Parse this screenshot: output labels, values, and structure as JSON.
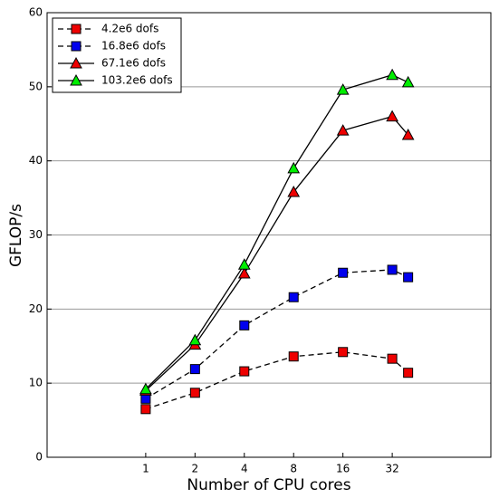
{
  "chart_data": {
    "type": "line",
    "x_label": "Number of CPU cores",
    "y_label": "GFLOP/s",
    "x": [
      1,
      2,
      4,
      8,
      16,
      32,
      40
    ],
    "series": [
      {
        "name": "4.2e6 dofs",
        "color": "#ee0000",
        "marker": "square",
        "linestyle": "dashed",
        "values": [
          6.5,
          8.7,
          11.6,
          13.6,
          14.2,
          13.3,
          11.4
        ]
      },
      {
        "name": "16.8e6 dofs",
        "color": "#0000ee",
        "marker": "square",
        "linestyle": "dashed",
        "values": [
          7.9,
          11.9,
          17.8,
          21.6,
          24.9,
          25.3,
          24.3
        ]
      },
      {
        "name": "67.1e6 dofs",
        "color": "#ee0000",
        "marker": "triangle",
        "linestyle": "solid",
        "values": [
          9.0,
          15.2,
          24.8,
          35.8,
          44.1,
          46.0,
          43.5
        ]
      },
      {
        "name": "103.2e6 dofs",
        "color": "#00ee00",
        "marker": "triangle",
        "linestyle": "solid",
        "values": [
          9.2,
          15.8,
          26.0,
          39.0,
          49.6,
          51.6,
          50.6
        ]
      }
    ],
    "xscale": "log2",
    "xlim": [
      0.25,
      128
    ],
    "xticks": [
      1,
      2,
      4,
      8,
      16,
      32
    ],
    "ylim": [
      0,
      60
    ],
    "yticks": [
      0,
      10,
      20,
      30,
      40,
      50,
      60
    ],
    "grid": "y",
    "legend": "top-left"
  }
}
